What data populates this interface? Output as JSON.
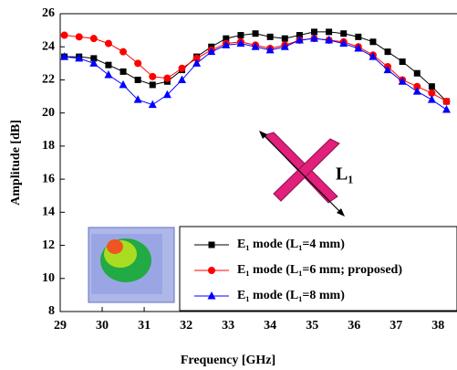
{
  "chart_data": {
    "type": "line",
    "xlabel": "Frequency [GHz]",
    "ylabel": "Amplitude [dB]",
    "annotation": "L₁",
    "x": [
      29.1,
      29.45,
      29.8,
      30.15,
      30.5,
      30.85,
      31.2,
      31.55,
      31.9,
      32.25,
      32.6,
      32.95,
      33.3,
      33.65,
      34.0,
      34.35,
      34.7,
      35.05,
      35.4,
      35.75,
      36.1,
      36.45,
      36.8,
      37.15,
      37.5,
      37.85,
      38.2
    ],
    "series": [
      {
        "name": "E₁ mode (L₁=4 mm)",
        "color": "#000000",
        "marker": "square",
        "values": [
          23.4,
          23.4,
          23.3,
          22.9,
          22.5,
          22.0,
          21.7,
          21.9,
          22.6,
          23.4,
          24.0,
          24.5,
          24.7,
          24.8,
          24.6,
          24.5,
          24.7,
          24.9,
          24.9,
          24.8,
          24.6,
          24.3,
          23.7,
          23.1,
          22.4,
          21.6,
          20.7
        ]
      },
      {
        "name": "E₁ mode (L₁=6 mm; proposed)",
        "color": "#ff0000",
        "marker": "circle",
        "values": [
          24.7,
          24.6,
          24.5,
          24.2,
          23.7,
          23.0,
          22.2,
          22.1,
          22.7,
          23.3,
          23.8,
          24.2,
          24.3,
          24.1,
          23.9,
          24.1,
          24.4,
          24.5,
          24.4,
          24.3,
          24.0,
          23.5,
          22.8,
          22.0,
          21.6,
          21.2,
          20.7
        ]
      },
      {
        "name": "E₁ mode (L₁=8 mm)",
        "color": "#0000ff",
        "marker": "triangle",
        "values": [
          23.4,
          23.3,
          23.0,
          22.3,
          21.7,
          20.8,
          20.5,
          21.1,
          22.0,
          23.0,
          23.7,
          24.1,
          24.2,
          24.0,
          23.8,
          24.0,
          24.4,
          24.5,
          24.4,
          24.2,
          23.9,
          23.4,
          22.6,
          21.9,
          21.3,
          20.8,
          20.2
        ]
      }
    ],
    "xlim": [
      29,
      38.45
    ],
    "xticks": [
      29,
      30,
      31,
      32,
      33,
      34,
      35,
      36,
      37,
      38
    ],
    "ylim": [
      8,
      26
    ],
    "yticks": [
      8,
      10,
      12,
      14,
      16,
      18,
      20,
      22,
      24,
      26
    ]
  }
}
